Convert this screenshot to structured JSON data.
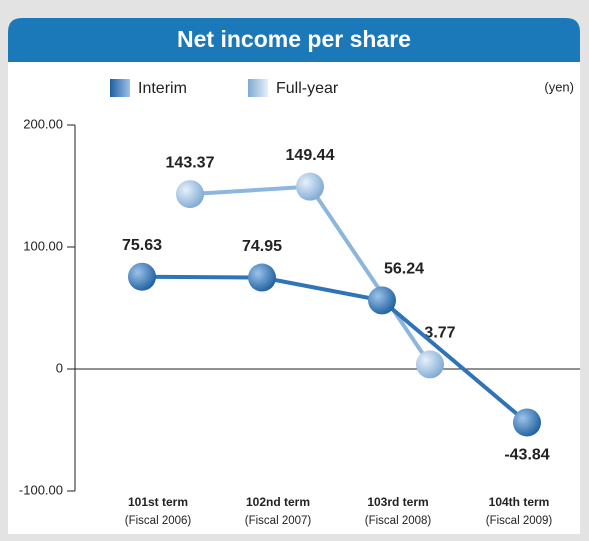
{
  "chart_data": {
    "type": "line",
    "title": "Net income per share",
    "unit": "(yen)",
    "categories": [
      "101st term",
      "102nd term",
      "103rd term",
      "104th term"
    ],
    "category_notes": [
      "(Fiscal 2006)",
      "(Fiscal 2007)",
      "(Fiscal 2008)",
      "(Fiscal 2009)"
    ],
    "series": [
      {
        "name": "Interim",
        "color": "#2f73b8",
        "values": [
          75.63,
          74.95,
          56.24,
          -43.84
        ]
      },
      {
        "name": "Full-year",
        "color": "#8cb6de",
        "values": [
          143.37,
          149.44,
          3.77,
          null
        ]
      }
    ],
    "ylim": [
      -100,
      200
    ],
    "yticks": [
      {
        "value": -100,
        "label": "-100.00"
      },
      0,
      {
        "value": 100,
        "label": "100.00"
      },
      {
        "value": 200,
        "label": "200.00"
      }
    ],
    "legend": "top-left"
  }
}
